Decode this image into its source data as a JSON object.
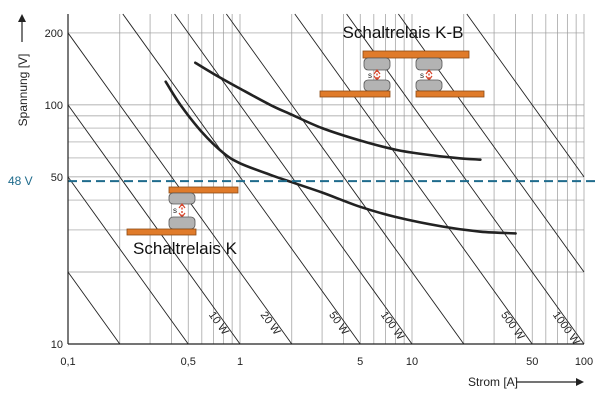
{
  "chart_data": {
    "type": "line",
    "xlabel": "Strom [A]",
    "ylabel": "Spannung [V]",
    "xscale": "log",
    "yscale": "log",
    "xlim": [
      0.1,
      100
    ],
    "ylim": [
      10,
      240
    ],
    "x_ticks": [
      {
        "value": 0.1,
        "label": "0,1"
      },
      {
        "value": 0.5,
        "label": "0,5"
      },
      {
        "value": 1,
        "label": "1"
      },
      {
        "value": 5,
        "label": "5"
      },
      {
        "value": 10,
        "label": "10"
      },
      {
        "value": 50,
        "label": "50"
      },
      {
        "value": 100,
        "label": "100"
      }
    ],
    "y_ticks": [
      {
        "value": 10,
        "label": "10"
      },
      {
        "value": 50,
        "label": "50"
      },
      {
        "value": 100,
        "label": "100"
      },
      {
        "value": 200,
        "label": "200"
      }
    ],
    "grid": true,
    "power_lines": [
      {
        "watts": 10,
        "label": "10 W"
      },
      {
        "watts": 20,
        "label": "20 W"
      },
      {
        "watts": 50,
        "label": "50 W"
      },
      {
        "watts": 100,
        "label": "100 W"
      },
      {
        "watts": 500,
        "label": "500 W"
      },
      {
        "watts": 1000,
        "label": "1000 W"
      }
    ],
    "reference_line": {
      "value": 48,
      "label": "48 V",
      "color": "#1f6b8c"
    },
    "series": [
      {
        "name": "Schaltrelais K-B",
        "x": [
          0.55,
          0.7,
          1,
          1.5,
          2,
          3,
          5,
          8,
          12,
          18,
          25
        ],
        "y": [
          150,
          135,
          117,
          100,
          91,
          80,
          71,
          65,
          62,
          60,
          59
        ]
      },
      {
        "name": "Schaltrelais K",
        "x": [
          0.37,
          0.45,
          0.6,
          0.8,
          1,
          1.5,
          2,
          3,
          5,
          8,
          15,
          25,
          40
        ],
        "y": [
          125,
          100,
          77,
          63,
          57,
          51,
          47.5,
          43,
          37.5,
          34,
          31,
          29.5,
          29
        ]
      }
    ],
    "annotations": [
      {
        "text": "Schaltrelais K-B"
      },
      {
        "text": "Schaltrelais K"
      }
    ],
    "colors": {
      "curve": "#222222",
      "grid": "#999999",
      "contact_plate": "#e07b2a",
      "contact_tip": "#b3b3b3",
      "gap_marker": "#d6452b"
    }
  }
}
